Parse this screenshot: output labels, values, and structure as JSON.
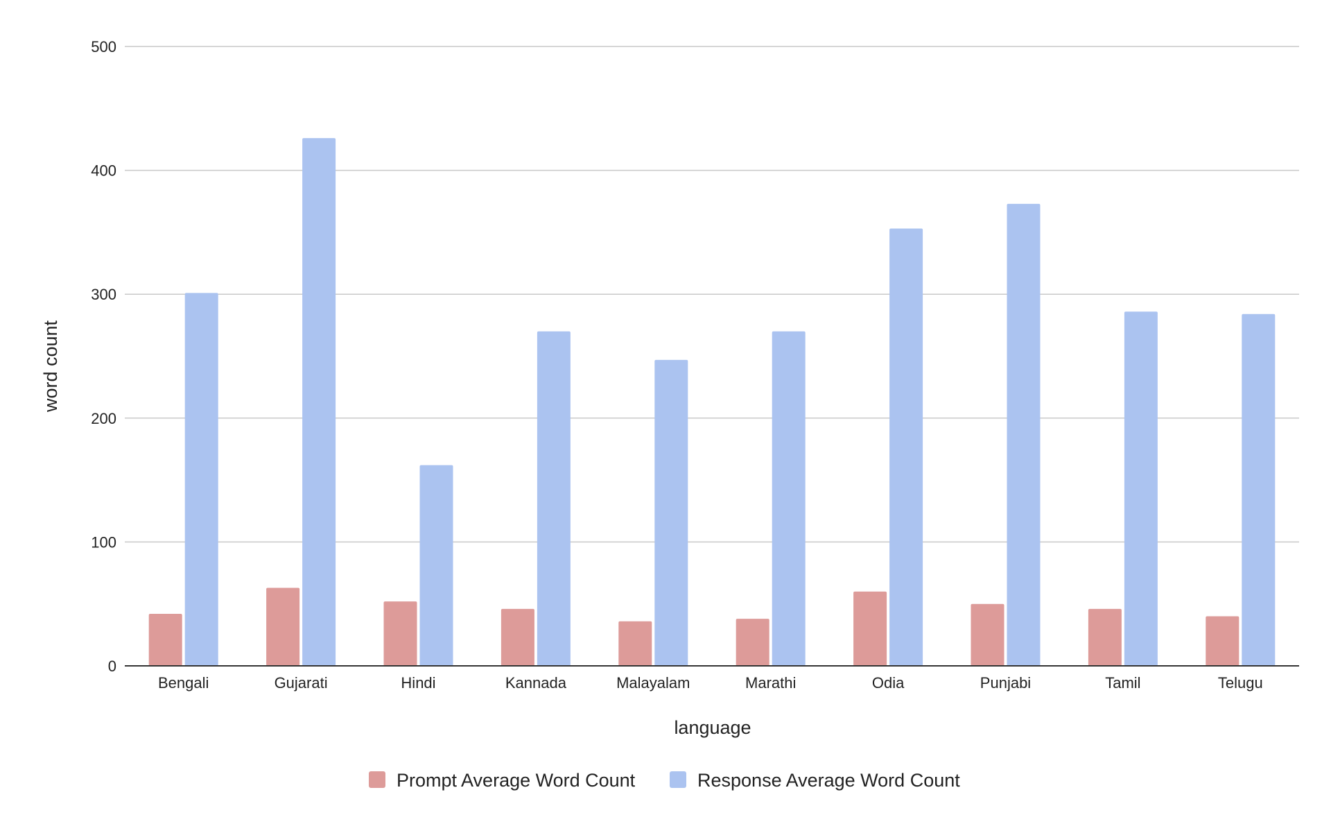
{
  "chart_data": {
    "type": "bar",
    "title": "",
    "xlabel": "language",
    "ylabel": "word count",
    "ylim": [
      0,
      500
    ],
    "yticks": [
      0,
      100,
      200,
      300,
      400,
      500
    ],
    "grid": true,
    "legend_position": "bottom",
    "categories": [
      "Bengali",
      "Gujarati",
      "Hindi",
      "Kannada",
      "Malayalam",
      "Marathi",
      "Odia",
      "Punjabi",
      "Tamil",
      "Telugu"
    ],
    "series": [
      {
        "name": "Prompt Average Word Count",
        "color": "#dd9b99",
        "values": [
          42,
          63,
          52,
          46,
          36,
          38,
          60,
          50,
          46,
          40
        ]
      },
      {
        "name": "Response Average Word Count",
        "color": "#abc3f0",
        "values": [
          301,
          426,
          162,
          270,
          247,
          270,
          353,
          373,
          286,
          284
        ]
      }
    ]
  }
}
